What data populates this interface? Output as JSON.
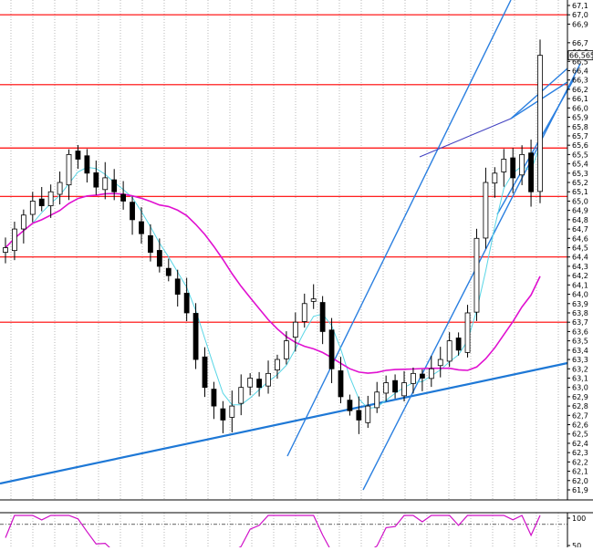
{
  "chart_data": {
    "type": "candlestick",
    "main_panel": {
      "y_axis_ticks": [
        "67,1",
        "67,0",
        "66,9",
        "66,7",
        "66,6",
        "66,5",
        "66,4",
        "66,3",
        "66,2",
        "66,1",
        "66,0",
        "65,9",
        "65,8",
        "65,7",
        "65,6",
        "65,5",
        "65,4",
        "65,3",
        "65,2",
        "65,1",
        "65,0",
        "64,9",
        "64,8",
        "64,7",
        "64,6",
        "64,5",
        "64,4",
        "64,3",
        "64,2",
        "64,1",
        "64,0",
        "63,9",
        "63,8",
        "63,7",
        "63,6",
        "63,5",
        "63,4",
        "63,3",
        "63,2",
        "63,1",
        "63,0",
        "62,9",
        "62,8",
        "62,7",
        "62,6",
        "62,5",
        "62,4",
        "62,3",
        "62,2",
        "62,1",
        "62,0",
        "61,9"
      ],
      "y_axis_values": [
        67.1,
        67.0,
        66.9,
        66.7,
        66.6,
        66.5,
        66.4,
        66.3,
        66.2,
        66.1,
        66.0,
        65.9,
        65.8,
        65.7,
        65.6,
        65.5,
        65.4,
        65.3,
        65.2,
        65.1,
        65.0,
        64.9,
        64.8,
        64.7,
        64.6,
        64.5,
        64.4,
        64.3,
        64.2,
        64.1,
        64.0,
        63.9,
        63.8,
        63.7,
        63.6,
        63.5,
        63.4,
        63.3,
        63.2,
        63.1,
        63.0,
        62.9,
        62.8,
        62.7,
        62.6,
        62.5,
        62.4,
        62.3,
        62.2,
        62.1,
        62.0,
        61.9
      ],
      "current_price_label": "66,565",
      "current_price": 66.565,
      "horizontal_levels": [
        67.0,
        66.25,
        65.57,
        65.05,
        64.4,
        63.7
      ],
      "bar_count": 60,
      "close": [
        64.5,
        64.7,
        64.85,
        65.0,
        64.95,
        65.1,
        65.2,
        65.5,
        65.45,
        65.3,
        65.15,
        65.25,
        65.1,
        65.0,
        64.8,
        64.65,
        64.45,
        64.3,
        64.2,
        64.0,
        63.8,
        63.3,
        63.0,
        62.8,
        62.65,
        62.8,
        63.0,
        63.1,
        63.0,
        63.15,
        63.3,
        63.5,
        63.7,
        63.9,
        63.95,
        63.6,
        63.2,
        62.9,
        62.75,
        62.65,
        62.8,
        62.95,
        63.05,
        62.95,
        63.05,
        63.15,
        63.1,
        63.2,
        63.3,
        63.5,
        63.4,
        63.8,
        64.6,
        65.2,
        65.3,
        65.45,
        65.25,
        65.5,
        65.1,
        66.565
      ],
      "colors": {
        "candle": "#000000",
        "level_line": "#ff0000",
        "trend_line": "#1e78d6",
        "channel_line": "#2a7fe0",
        "fast_ma": "#59d6e6",
        "slow_ma": "#e010d0",
        "grid": "#9a9a9a",
        "thin_line": "#4040c0"
      }
    },
    "oscillator_panel": {
      "y_axis_ticks": [
        "100",
        "50"
      ],
      "y_axis_values": [
        100,
        50
      ],
      "reference_level": 80,
      "line_color": "#d010c8"
    }
  }
}
